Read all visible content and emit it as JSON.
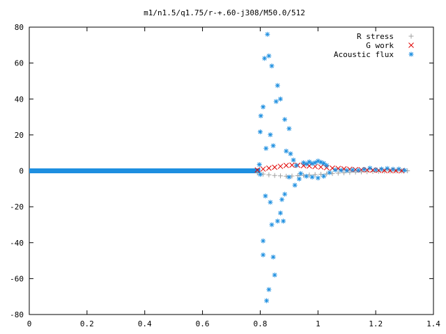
{
  "chart_data": {
    "type": "scatter",
    "title": "m1/n1.5/q1.75/r-+.60-j308/M50.0/512",
    "xlim": [
      0,
      1.4
    ],
    "ylim": [
      -80,
      80
    ],
    "xticks": [
      "0",
      "0.2",
      "0.4",
      "0.6",
      "0.8",
      "1",
      "1.2",
      "1.4"
    ],
    "yticks": [
      "80",
      "60",
      "40",
      "20",
      "0",
      "-20",
      "-40",
      "-60",
      "-80"
    ],
    "xtick_values": [
      0,
      0.2,
      0.4,
      0.6,
      0.8,
      1.0,
      1.2,
      1.4
    ],
    "ytick_values": [
      80,
      60,
      40,
      20,
      0,
      -20,
      -40,
      -60,
      -80
    ],
    "legend_position": "top-right",
    "grid": false,
    "series": [
      {
        "name": "R stress",
        "marker": "plus",
        "color": "#a0a0a0",
        "points": [
          [
            0.79,
            -1.2
          ],
          [
            0.81,
            -1.8
          ],
          [
            0.83,
            -2.2
          ],
          [
            0.85,
            -2.6
          ],
          [
            0.87,
            -2.8
          ],
          [
            0.89,
            -3.0
          ],
          [
            0.91,
            -2.9
          ],
          [
            0.93,
            -2.7
          ],
          [
            0.95,
            -2.5
          ],
          [
            0.97,
            -2.3
          ],
          [
            0.99,
            -2.1
          ],
          [
            1.01,
            -1.9
          ],
          [
            1.03,
            -1.7
          ],
          [
            1.05,
            -1.5
          ],
          [
            1.07,
            -1.3
          ],
          [
            1.09,
            -1.1
          ],
          [
            1.11,
            -0.9
          ],
          [
            1.13,
            -0.7
          ],
          [
            1.15,
            -0.6
          ],
          [
            1.17,
            -0.5
          ],
          [
            1.19,
            -0.4
          ],
          [
            1.21,
            -0.3
          ],
          [
            1.23,
            -0.2
          ],
          [
            1.25,
            -0.15
          ],
          [
            1.27,
            -0.1
          ],
          [
            1.29,
            -0.05
          ],
          [
            1.31,
            0.0
          ]
        ]
      },
      {
        "name": "G work",
        "marker": "cross",
        "color": "#e00000",
        "points": [
          [
            0.79,
            0.5
          ],
          [
            0.81,
            1.0
          ],
          [
            0.83,
            1.5
          ],
          [
            0.85,
            2.0
          ],
          [
            0.87,
            2.5
          ],
          [
            0.89,
            3.0
          ],
          [
            0.91,
            3.2
          ],
          [
            0.93,
            3.1
          ],
          [
            0.95,
            2.9
          ],
          [
            0.97,
            2.7
          ],
          [
            0.99,
            2.4
          ],
          [
            1.01,
            2.1
          ],
          [
            1.03,
            1.8
          ],
          [
            1.05,
            1.5
          ],
          [
            1.07,
            1.3
          ],
          [
            1.09,
            1.1
          ],
          [
            1.11,
            0.9
          ],
          [
            1.13,
            0.7
          ],
          [
            1.15,
            0.6
          ],
          [
            1.17,
            0.5
          ],
          [
            1.19,
            0.4
          ],
          [
            1.21,
            0.3
          ],
          [
            1.23,
            0.2
          ],
          [
            1.25,
            0.15
          ],
          [
            1.27,
            0.1
          ],
          [
            1.29,
            0.05
          ]
        ]
      },
      {
        "name": "Acoustic flux",
        "marker": "star",
        "color": "#1e8fe0",
        "points": [
          [
            0.797,
            3.5
          ],
          [
            0.8,
            21.7
          ],
          [
            0.802,
            30.6
          ],
          [
            0.81,
            35.6
          ],
          [
            0.815,
            62.6
          ],
          [
            0.82,
            12.5
          ],
          [
            0.825,
            76.0
          ],
          [
            0.83,
            64.0
          ],
          [
            0.84,
            58.4
          ],
          [
            0.845,
            14.0
          ],
          [
            0.835,
            20.1
          ],
          [
            0.855,
            38.6
          ],
          [
            0.86,
            47.5
          ],
          [
            0.87,
            40.0
          ],
          [
            0.885,
            28.6
          ],
          [
            0.9,
            23.5
          ],
          [
            0.89,
            11.0
          ],
          [
            0.905,
            9.5
          ],
          [
            0.915,
            6.0
          ],
          [
            0.925,
            3.0
          ],
          [
            0.8,
            -2.0
          ],
          [
            0.81,
            -39.0
          ],
          [
            0.81,
            -46.8
          ],
          [
            0.818,
            -14.0
          ],
          [
            0.822,
            -72.3
          ],
          [
            0.83,
            -66.1
          ],
          [
            0.835,
            -17.5
          ],
          [
            0.84,
            -30.0
          ],
          [
            0.845,
            -48.0
          ],
          [
            0.85,
            -58.0
          ],
          [
            0.86,
            -28.0
          ],
          [
            0.87,
            -23.5
          ],
          [
            0.875,
            -16.0
          ],
          [
            0.88,
            -28.0
          ],
          [
            0.885,
            -13.0
          ],
          [
            0.9,
            -3.5
          ],
          [
            0.92,
            -8.0
          ],
          [
            0.935,
            -4.5
          ],
          [
            0.95,
            4.5
          ],
          [
            0.96,
            3.8
          ],
          [
            0.97,
            5.0
          ],
          [
            0.98,
            4.0
          ],
          [
            0.99,
            4.5
          ],
          [
            1.0,
            5.5
          ],
          [
            1.01,
            4.8
          ],
          [
            1.02,
            4.2
          ],
          [
            1.03,
            3.0
          ],
          [
            0.94,
            -1.5
          ],
          [
            0.96,
            -3.0
          ],
          [
            0.98,
            -3.5
          ],
          [
            1.0,
            -4.0
          ],
          [
            1.02,
            -3.0
          ],
          [
            1.04,
            -1.0
          ],
          [
            1.06,
            0.5
          ],
          [
            1.08,
            0.3
          ],
          [
            1.1,
            0.2
          ],
          [
            1.12,
            0.5
          ],
          [
            1.14,
            0.3
          ],
          [
            1.16,
            0.8
          ],
          [
            1.18,
            1.5
          ],
          [
            1.2,
            0.6
          ],
          [
            1.22,
            1.0
          ],
          [
            1.24,
            1.3
          ],
          [
            1.26,
            0.9
          ],
          [
            1.28,
            1.0
          ],
          [
            1.3,
            0.3
          ]
        ]
      }
    ]
  }
}
